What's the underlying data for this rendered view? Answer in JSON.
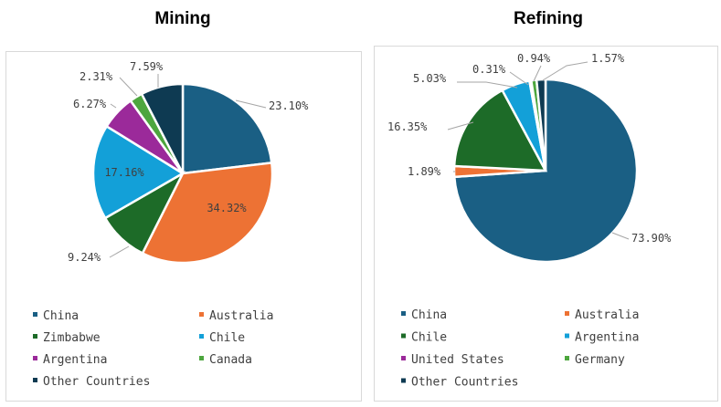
{
  "chart_data": [
    {
      "type": "pie",
      "title": "Mining",
      "categories": [
        "China",
        "Australia",
        "Zimbabwe",
        "Chile",
        "Argentina",
        "Canada",
        "Other Countries"
      ],
      "values": [
        23.1,
        34.32,
        9.24,
        17.16,
        6.27,
        2.31,
        7.59
      ],
      "data_labels": [
        "23.10%",
        "34.32%",
        "9.24%",
        "17.16%",
        "6.27%",
        "2.31%",
        "7.59%"
      ],
      "colors": [
        "#1a5f84",
        "#ed7234",
        "#1d6b28",
        "#13a0d8",
        "#9b2a9a",
        "#4da63e",
        "#0e3a52"
      ],
      "legend": "bottom"
    },
    {
      "type": "pie",
      "title": "Refining",
      "categories": [
        "China",
        "Australia",
        "Chile",
        "Argentina",
        "United States",
        "Germany",
        "Other Countries"
      ],
      "values": [
        73.9,
        1.89,
        16.35,
        5.03,
        0.31,
        0.94,
        1.57
      ],
      "data_labels": [
        "73.90%",
        "1.89%",
        "16.35%",
        "5.03%",
        "0.31%",
        "0.94%",
        "1.57%"
      ],
      "colors": [
        "#1a5f84",
        "#ed7234",
        "#1d6b28",
        "#13a0d8",
        "#9b2a9a",
        "#4da63e",
        "#0e3a52"
      ],
      "legend": "bottom"
    }
  ]
}
